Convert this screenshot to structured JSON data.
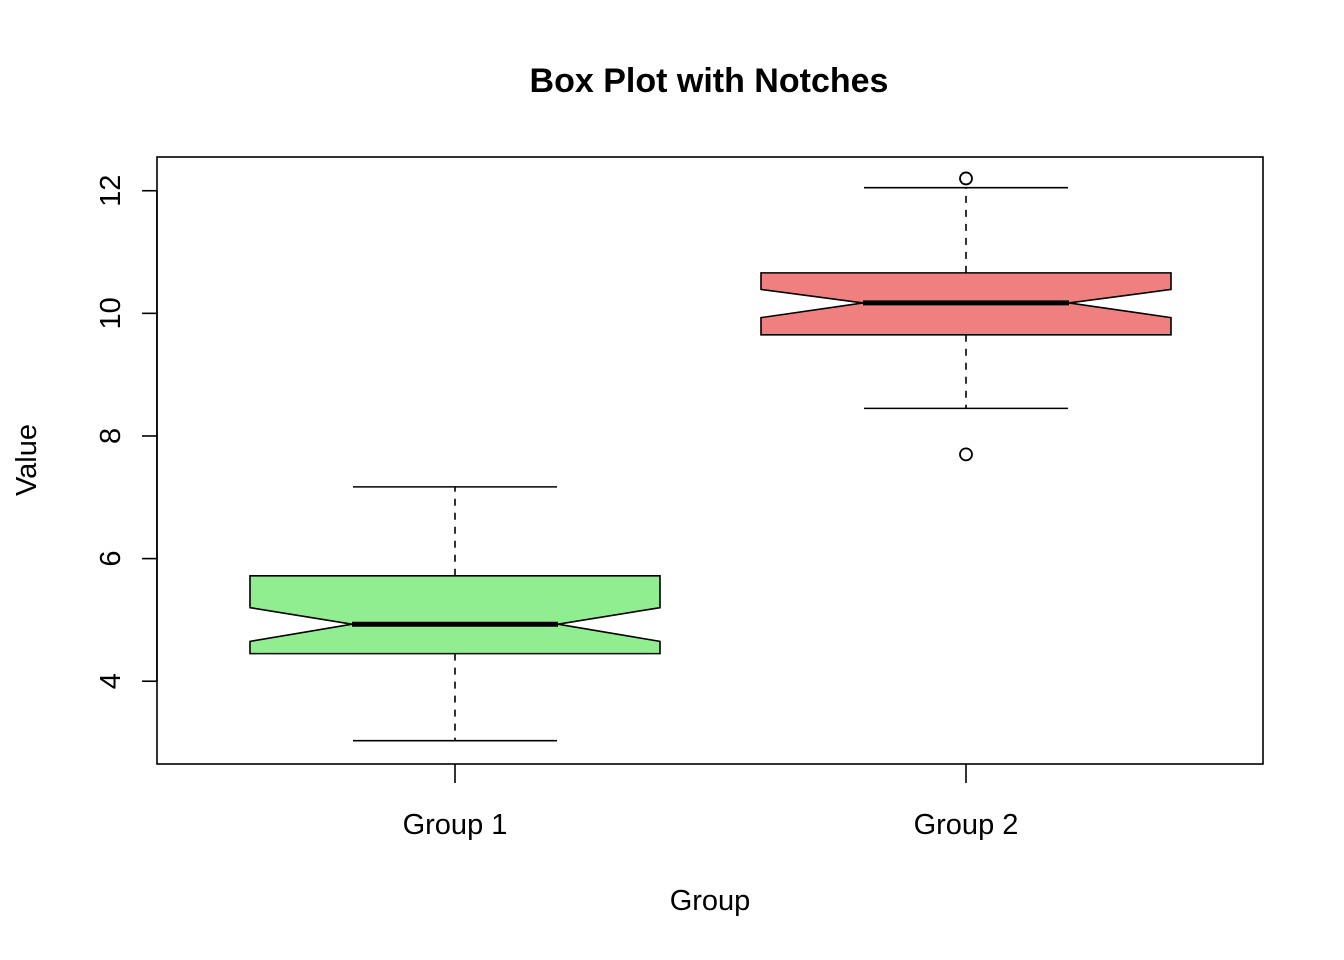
{
  "chart_data": {
    "type": "box",
    "title": "Box Plot with Notches",
    "xlabel": "Group",
    "ylabel": "Value",
    "notched": true,
    "categories": [
      "Group 1",
      "Group 2"
    ],
    "ylim": [
      2.65,
      12.55
    ],
    "yticks": [
      4,
      6,
      8,
      10,
      12
    ],
    "ytick_labels": [
      "4",
      "6",
      "8",
      "10",
      "12"
    ],
    "grid": false,
    "legend": "none",
    "series": [
      {
        "category": "Group 1",
        "color": "#90ee90",
        "whisker_low": 3.03,
        "q1": 4.45,
        "notch_low": 4.65,
        "median": 4.93,
        "notch_high": 5.2,
        "q3": 5.72,
        "whisker_high": 7.17,
        "outliers": []
      },
      {
        "category": "Group 2",
        "color": "#f08080",
        "whisker_low": 8.45,
        "q1": 9.65,
        "notch_low": 9.93,
        "median": 10.17,
        "notch_high": 10.39,
        "q3": 10.66,
        "whisker_high": 12.05,
        "outliers": [
          12.2,
          7.7
        ]
      }
    ]
  }
}
